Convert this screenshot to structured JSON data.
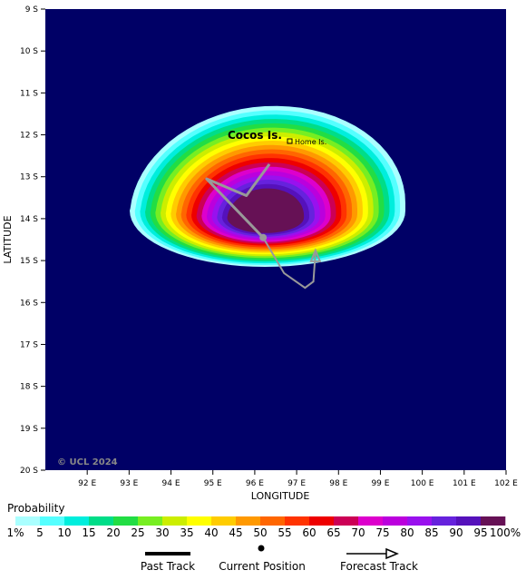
{
  "map": {
    "latitude_labels": [
      "9 S",
      "10 S",
      "11 S",
      "12 S",
      "13 S",
      "14 S",
      "15 S",
      "16 S",
      "17 S",
      "18 S",
      "19 S",
      "20 S"
    ],
    "longitude_labels": [
      "92 E",
      "93 E",
      "94 E",
      "95 E",
      "96 E",
      "97 E",
      "98 E",
      "99 E",
      "100 E",
      "101 E",
      "102 E"
    ],
    "x_axis_title": "LONGITUDE",
    "y_axis_title": "LATITUDE",
    "background_color": "#000066",
    "place_labels": {
      "island": "Cocos Is.",
      "town": "Home Is."
    },
    "copyright": "© UCL 2024",
    "track_color": "#999999"
  },
  "track": {
    "current_position": {
      "lat": -14.45,
      "lon": 96.2
    },
    "past_track": [
      {
        "lat": -12.7,
        "lon": 96.35
      },
      {
        "lat": -13.45,
        "lon": 95.8
      },
      {
        "lat": -13.05,
        "lon": 94.85
      },
      {
        "lat": -14.45,
        "lon": 96.2
      }
    ],
    "forecast_track": [
      {
        "lat": -14.45,
        "lon": 96.2
      },
      {
        "lat": -15.3,
        "lon": 96.7
      },
      {
        "lat": -15.65,
        "lon": 97.2
      },
      {
        "lat": -15.5,
        "lon": 97.4
      },
      {
        "lat": -14.8,
        "lon": 97.45
      }
    ]
  },
  "legend": {
    "title": "Probability",
    "labels": [
      "1%",
      "5",
      "10",
      "15",
      "20",
      "25",
      "30",
      "35",
      "40",
      "45",
      "50",
      "55",
      "60",
      "65",
      "70",
      "75",
      "80",
      "85",
      "90",
      "95",
      "100%"
    ],
    "colors": [
      "#aaffff",
      "#55ffff",
      "#00eedd",
      "#00dd88",
      "#22dd44",
      "#77ee22",
      "#ccee00",
      "#ffff00",
      "#ffcc00",
      "#ff9900",
      "#ff6600",
      "#ff3300",
      "#ee0000",
      "#cc0055",
      "#dd00cc",
      "#bb00dd",
      "#9911ee",
      "#6622dd",
      "#5511bb",
      "#661155"
    ]
  },
  "key": {
    "past_track": "Past Track",
    "current_position": "Current Position",
    "forecast_track": "Forecast Track"
  }
}
